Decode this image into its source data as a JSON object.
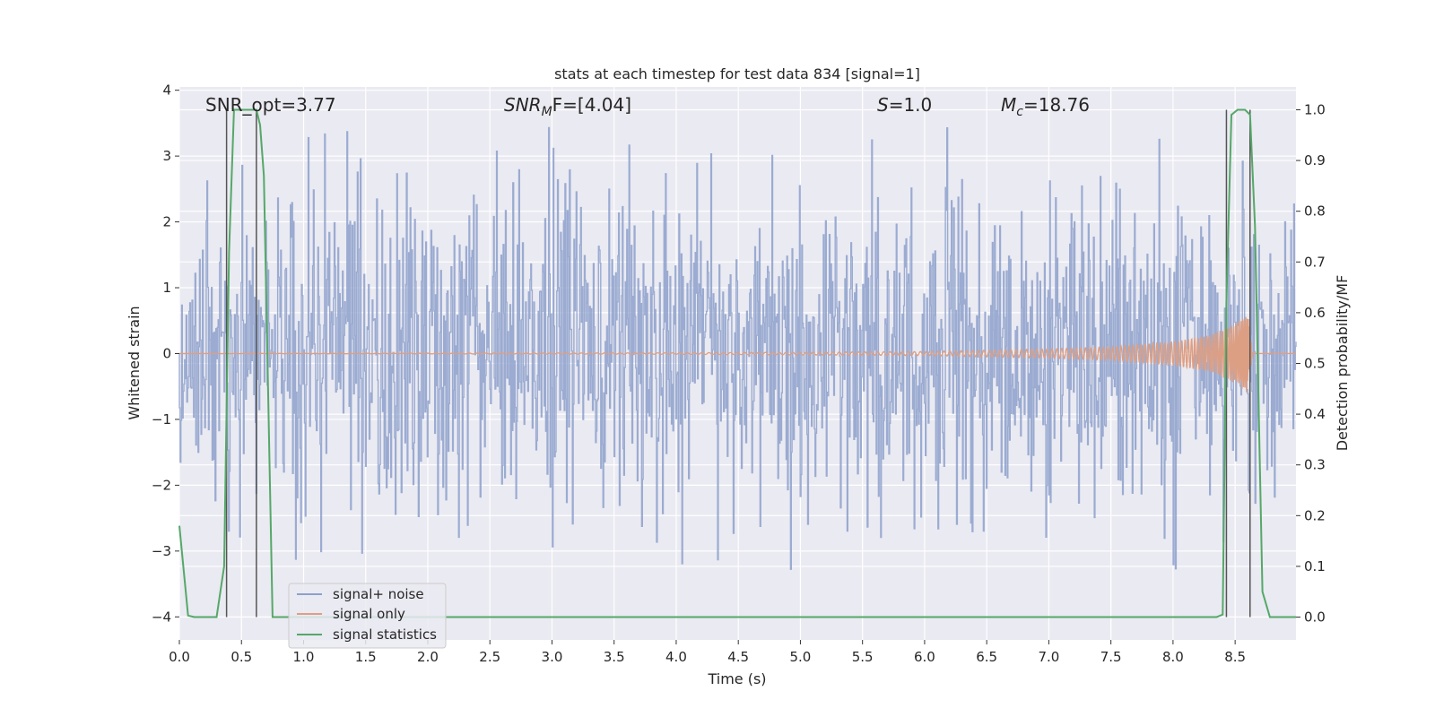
{
  "chart_data": {
    "type": "line",
    "title": "stats at each timestep for test data 834 [signal=1]",
    "xlabel": "Time (s)",
    "ylabel": "Whitened strain",
    "ylabel_right": "Detection probability/MF",
    "xlim": [
      0.0,
      8.99
    ],
    "ylim": [
      -4.35,
      4.05
    ],
    "ylim_right": [
      -0.045,
      1.045
    ],
    "xticks": [
      "0.0",
      "0.5",
      "1.0",
      "1.5",
      "2.0",
      "2.5",
      "3.0",
      "3.5",
      "4.0",
      "4.5",
      "5.0",
      "5.5",
      "6.0",
      "6.5",
      "7.0",
      "7.5",
      "8.0",
      "8.5"
    ],
    "yticks": [
      "4",
      "3",
      "2",
      "1",
      "0",
      "−1",
      "−2",
      "−3",
      "−4"
    ],
    "yticks_right": [
      "1.0",
      "0.9",
      "0.8",
      "0.7",
      "0.6",
      "0.5",
      "0.4",
      "0.3",
      "0.2",
      "0.1",
      "0.0"
    ],
    "grid": true,
    "legend_position": "lower-left",
    "annotations": {
      "snr_opt": "SNR_opt=3.77",
      "snr_mf_label": "SNR",
      "snr_mf_sub": "M",
      "snr_mf_tail": "F=[4.04]",
      "s_label": "S",
      "s_value": "=1.0",
      "mc_label": "M",
      "mc_sub": "c",
      "mc_value": "=18.76"
    },
    "series": [
      {
        "name": "signal+ noise",
        "color": "#8da0cb",
        "style": "dense noise, approx. Gaussian, sd~1.1, range -4.0 to 3.7",
        "envelope_upper": [
          [
            0.0,
            2.4
          ],
          [
            0.5,
            2.9
          ],
          [
            1.0,
            3.3
          ],
          [
            1.5,
            3.4
          ],
          [
            2.0,
            3.1
          ],
          [
            2.5,
            3.0
          ],
          [
            3.0,
            3.7
          ],
          [
            3.5,
            3.3
          ],
          [
            4.0,
            3.2
          ],
          [
            4.5,
            2.9
          ],
          [
            5.0,
            3.1
          ],
          [
            5.5,
            3.2
          ],
          [
            6.0,
            3.5
          ],
          [
            6.5,
            3.3
          ],
          [
            7.0,
            3.2
          ],
          [
            7.5,
            3.0
          ],
          [
            8.0,
            3.4
          ],
          [
            8.5,
            3.1
          ],
          [
            8.99,
            2.6
          ]
        ],
        "envelope_lower": [
          [
            0.0,
            -2.3
          ],
          [
            0.5,
            -2.8
          ],
          [
            1.0,
            -3.5
          ],
          [
            1.5,
            -3.0
          ],
          [
            2.0,
            -3.3
          ],
          [
            2.5,
            -3.0
          ],
          [
            3.0,
            -3.4
          ],
          [
            3.5,
            -3.6
          ],
          [
            4.0,
            -3.2
          ],
          [
            4.5,
            -3.1
          ],
          [
            5.0,
            -3.5
          ],
          [
            5.5,
            -4.0
          ],
          [
            6.0,
            -3.3
          ],
          [
            6.5,
            -3.1
          ],
          [
            7.0,
            -3.2
          ],
          [
            7.5,
            -3.4
          ],
          [
            8.0,
            -3.3
          ],
          [
            8.5,
            -3.0
          ],
          [
            8.99,
            -3.4
          ]
        ]
      },
      {
        "name": "signal only",
        "color": "#dd9f84",
        "style": "chirp, amplitude growing toward merger",
        "amplitude": [
          [
            0.0,
            0.0
          ],
          [
            4.0,
            0.01
          ],
          [
            6.0,
            0.03
          ],
          [
            7.0,
            0.07
          ],
          [
            7.5,
            0.1
          ],
          [
            8.0,
            0.18
          ],
          [
            8.3,
            0.28
          ],
          [
            8.5,
            0.45
          ],
          [
            8.6,
            0.6
          ],
          [
            8.65,
            0.0
          ],
          [
            8.99,
            0.0
          ]
        ]
      },
      {
        "name": "signal statistics",
        "color": "#55a868",
        "axis": "right",
        "x": [
          0.0,
          0.07,
          0.12,
          0.3,
          0.36,
          0.4,
          0.44,
          0.5,
          0.55,
          0.6,
          0.62,
          0.65,
          0.68,
          0.75,
          0.8,
          1.0,
          8.0,
          8.35,
          8.4,
          8.43,
          8.47,
          8.52,
          8.58,
          8.62,
          8.66,
          8.72,
          8.78,
          8.99
        ],
        "y": [
          0.18,
          0.003,
          0.0,
          0.0,
          0.1,
          0.72,
          1.0,
          1.0,
          1.0,
          1.0,
          1.0,
          0.97,
          0.87,
          0.0,
          0.0,
          0.0,
          0.0,
          0.0,
          0.005,
          0.62,
          0.99,
          1.0,
          1.0,
          0.99,
          0.77,
          0.05,
          0.0,
          0.0
        ]
      }
    ],
    "vertical_markers": [
      0.38,
      0.62,
      8.43,
      8.62
    ]
  },
  "legend": {
    "signal_noise": "signal+ noise",
    "signal_only": "signal only",
    "signal_stats": "signal statistics"
  }
}
